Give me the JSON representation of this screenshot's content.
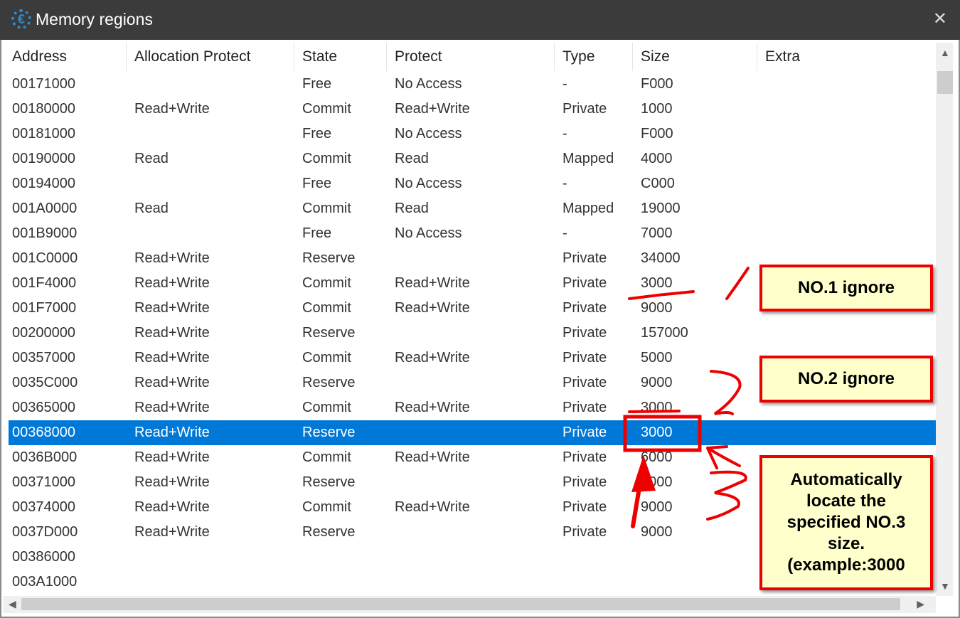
{
  "window": {
    "title": "Memory regions",
    "icon": "cheat-engine-logo"
  },
  "columns": [
    "Address",
    "Allocation Protect",
    "State",
    "Protect",
    "Type",
    "Size",
    "Extra"
  ],
  "rows": [
    [
      "00171000",
      "",
      "Free",
      "No Access",
      "-",
      "F000"
    ],
    [
      "00180000",
      "Read+Write",
      "Commit",
      "Read+Write",
      "Private",
      "1000"
    ],
    [
      "00181000",
      "",
      "Free",
      "No Access",
      "-",
      "F000"
    ],
    [
      "00190000",
      "Read",
      "Commit",
      "Read",
      "Mapped",
      "4000"
    ],
    [
      "00194000",
      "",
      "Free",
      "No Access",
      "-",
      "C000"
    ],
    [
      "001A0000",
      "Read",
      "Commit",
      "Read",
      "Mapped",
      "19000"
    ],
    [
      "001B9000",
      "",
      "Free",
      "No Access",
      "-",
      "7000"
    ],
    [
      "001C0000",
      "Read+Write",
      "Reserve",
      "",
      "Private",
      "34000"
    ],
    [
      "001F4000",
      "Read+Write",
      "Commit",
      "Read+Write",
      "Private",
      "3000"
    ],
    [
      "001F7000",
      "Read+Write",
      "Commit",
      "Read+Write",
      "Private",
      "9000"
    ],
    [
      "00200000",
      "Read+Write",
      "Reserve",
      "",
      "Private",
      "157000"
    ],
    [
      "00357000",
      "Read+Write",
      "Commit",
      "Read+Write",
      "Private",
      "5000"
    ],
    [
      "0035C000",
      "Read+Write",
      "Reserve",
      "",
      "Private",
      "9000"
    ],
    [
      "00365000",
      "Read+Write",
      "Commit",
      "Read+Write",
      "Private",
      "3000"
    ],
    [
      "00368000",
      "Read+Write",
      "Reserve",
      "",
      "Private",
      "3000"
    ],
    [
      "0036B000",
      "Read+Write",
      "Commit",
      "Read+Write",
      "Private",
      "6000"
    ],
    [
      "00371000",
      "Read+Write",
      "Reserve",
      "",
      "Private",
      "3000"
    ],
    [
      "00374000",
      "Read+Write",
      "Commit",
      "Read+Write",
      "Private",
      "9000"
    ],
    [
      "0037D000",
      "Read+Write",
      "Reserve",
      "",
      "Private",
      "9000"
    ],
    [
      "00386000",
      "",
      "",
      "",
      "",
      ""
    ],
    [
      "003A1000",
      "",
      "",
      "",
      "",
      ""
    ]
  ],
  "selected_row": 14,
  "annotations": {
    "note1": "NO.1 ignore",
    "note2": "NO.2  ignore",
    "note3": "Automatically locate the specified NO.3 size.(example:3000",
    "marks": [
      "1",
      "2",
      "3"
    ]
  },
  "colors": {
    "selection": "#0078d7",
    "annotation_border": "#ee0000",
    "annotation_fill": "#ffffcc"
  }
}
